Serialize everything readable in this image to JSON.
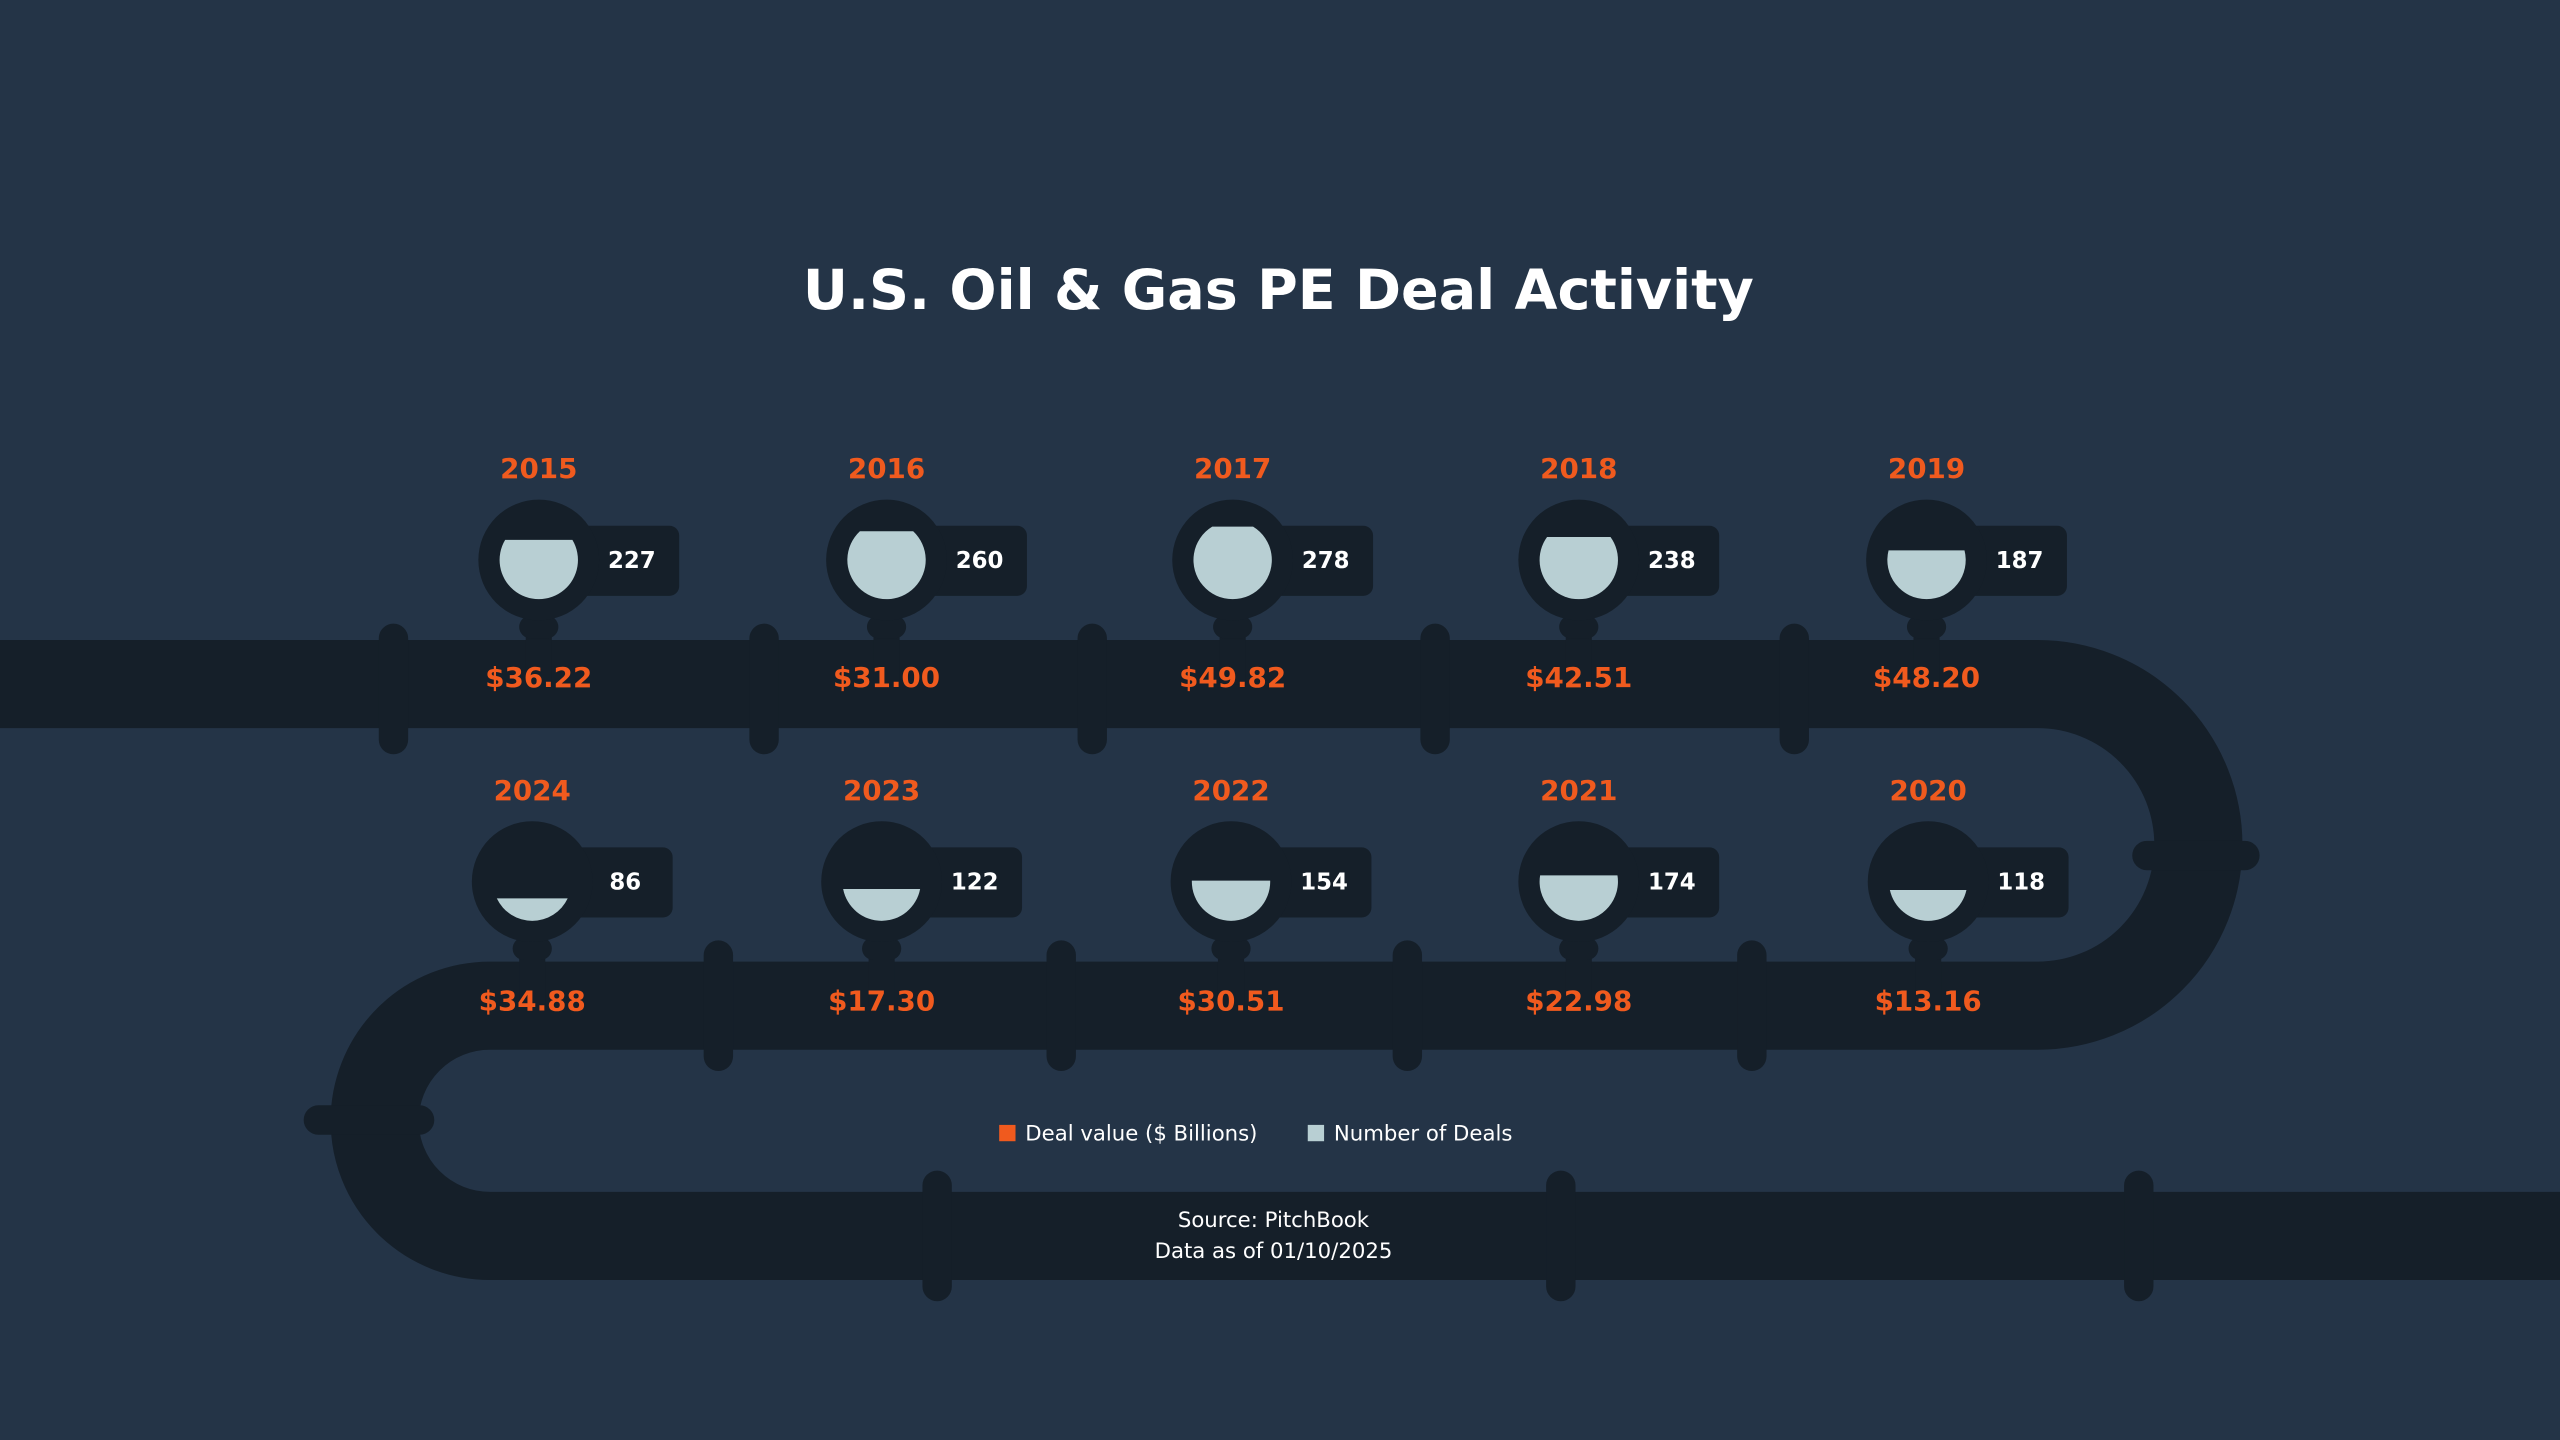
{
  "chart_data": {
    "type": "pipeline",
    "title": "U.S. Oil & Gas PE Deal Activity",
    "categories": [
      "2015",
      "2016",
      "2017",
      "2018",
      "2019",
      "2020",
      "2021",
      "2022",
      "2023",
      "2024"
    ],
    "series": [
      {
        "name": "Deal value ($ Billions)",
        "color": "#f05a1e",
        "values": [
          36.22,
          31,
          49.82,
          42.51,
          48.2,
          13.16,
          22.98,
          30.51,
          17.3,
          34.88
        ],
        "value_labels": [
          "$36.22",
          "$31.00",
          "$49.82",
          "$42.51",
          "$48.20",
          "$13.16",
          "$22.98",
          "$30.51",
          "$17.30",
          "$34.88"
        ]
      },
      {
        "name": "Number of Deals",
        "color": "#b8cfd3",
        "values": [
          227,
          260,
          278,
          238,
          187,
          118,
          174,
          154,
          122,
          86
        ]
      }
    ],
    "ylim": [
      0,
      300
    ],
    "source": "Source: PitchBook",
    "note": "Data as of 01/10/2025"
  }
}
